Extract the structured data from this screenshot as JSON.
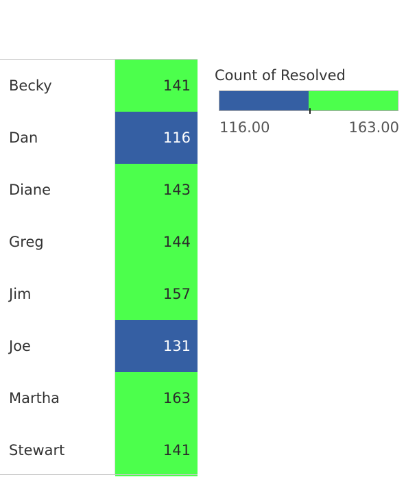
{
  "chart_data": {
    "type": "table",
    "rows": [
      {
        "name": "Becky",
        "value": "141",
        "bin": "high"
      },
      {
        "name": "Dan",
        "value": "116",
        "bin": "low"
      },
      {
        "name": "Diane",
        "value": "143",
        "bin": "high"
      },
      {
        "name": "Greg",
        "value": "144",
        "bin": "high"
      },
      {
        "name": "Jim",
        "value": "157",
        "bin": "high"
      },
      {
        "name": "Joe",
        "value": "131",
        "bin": "low"
      },
      {
        "name": "Martha",
        "value": "163",
        "bin": "high"
      },
      {
        "name": "Stewart",
        "value": "141",
        "bin": "high"
      }
    ],
    "legend": {
      "title": "Count of Resolved",
      "min_label": "116.00",
      "max_label": "163.00",
      "min": 116,
      "max": 163,
      "split_fraction": 0.5
    },
    "colors": {
      "low": "#355fa3",
      "high": "#4cff4c",
      "low_text": "#ffffff",
      "high_text": "#2b2b2b"
    }
  }
}
